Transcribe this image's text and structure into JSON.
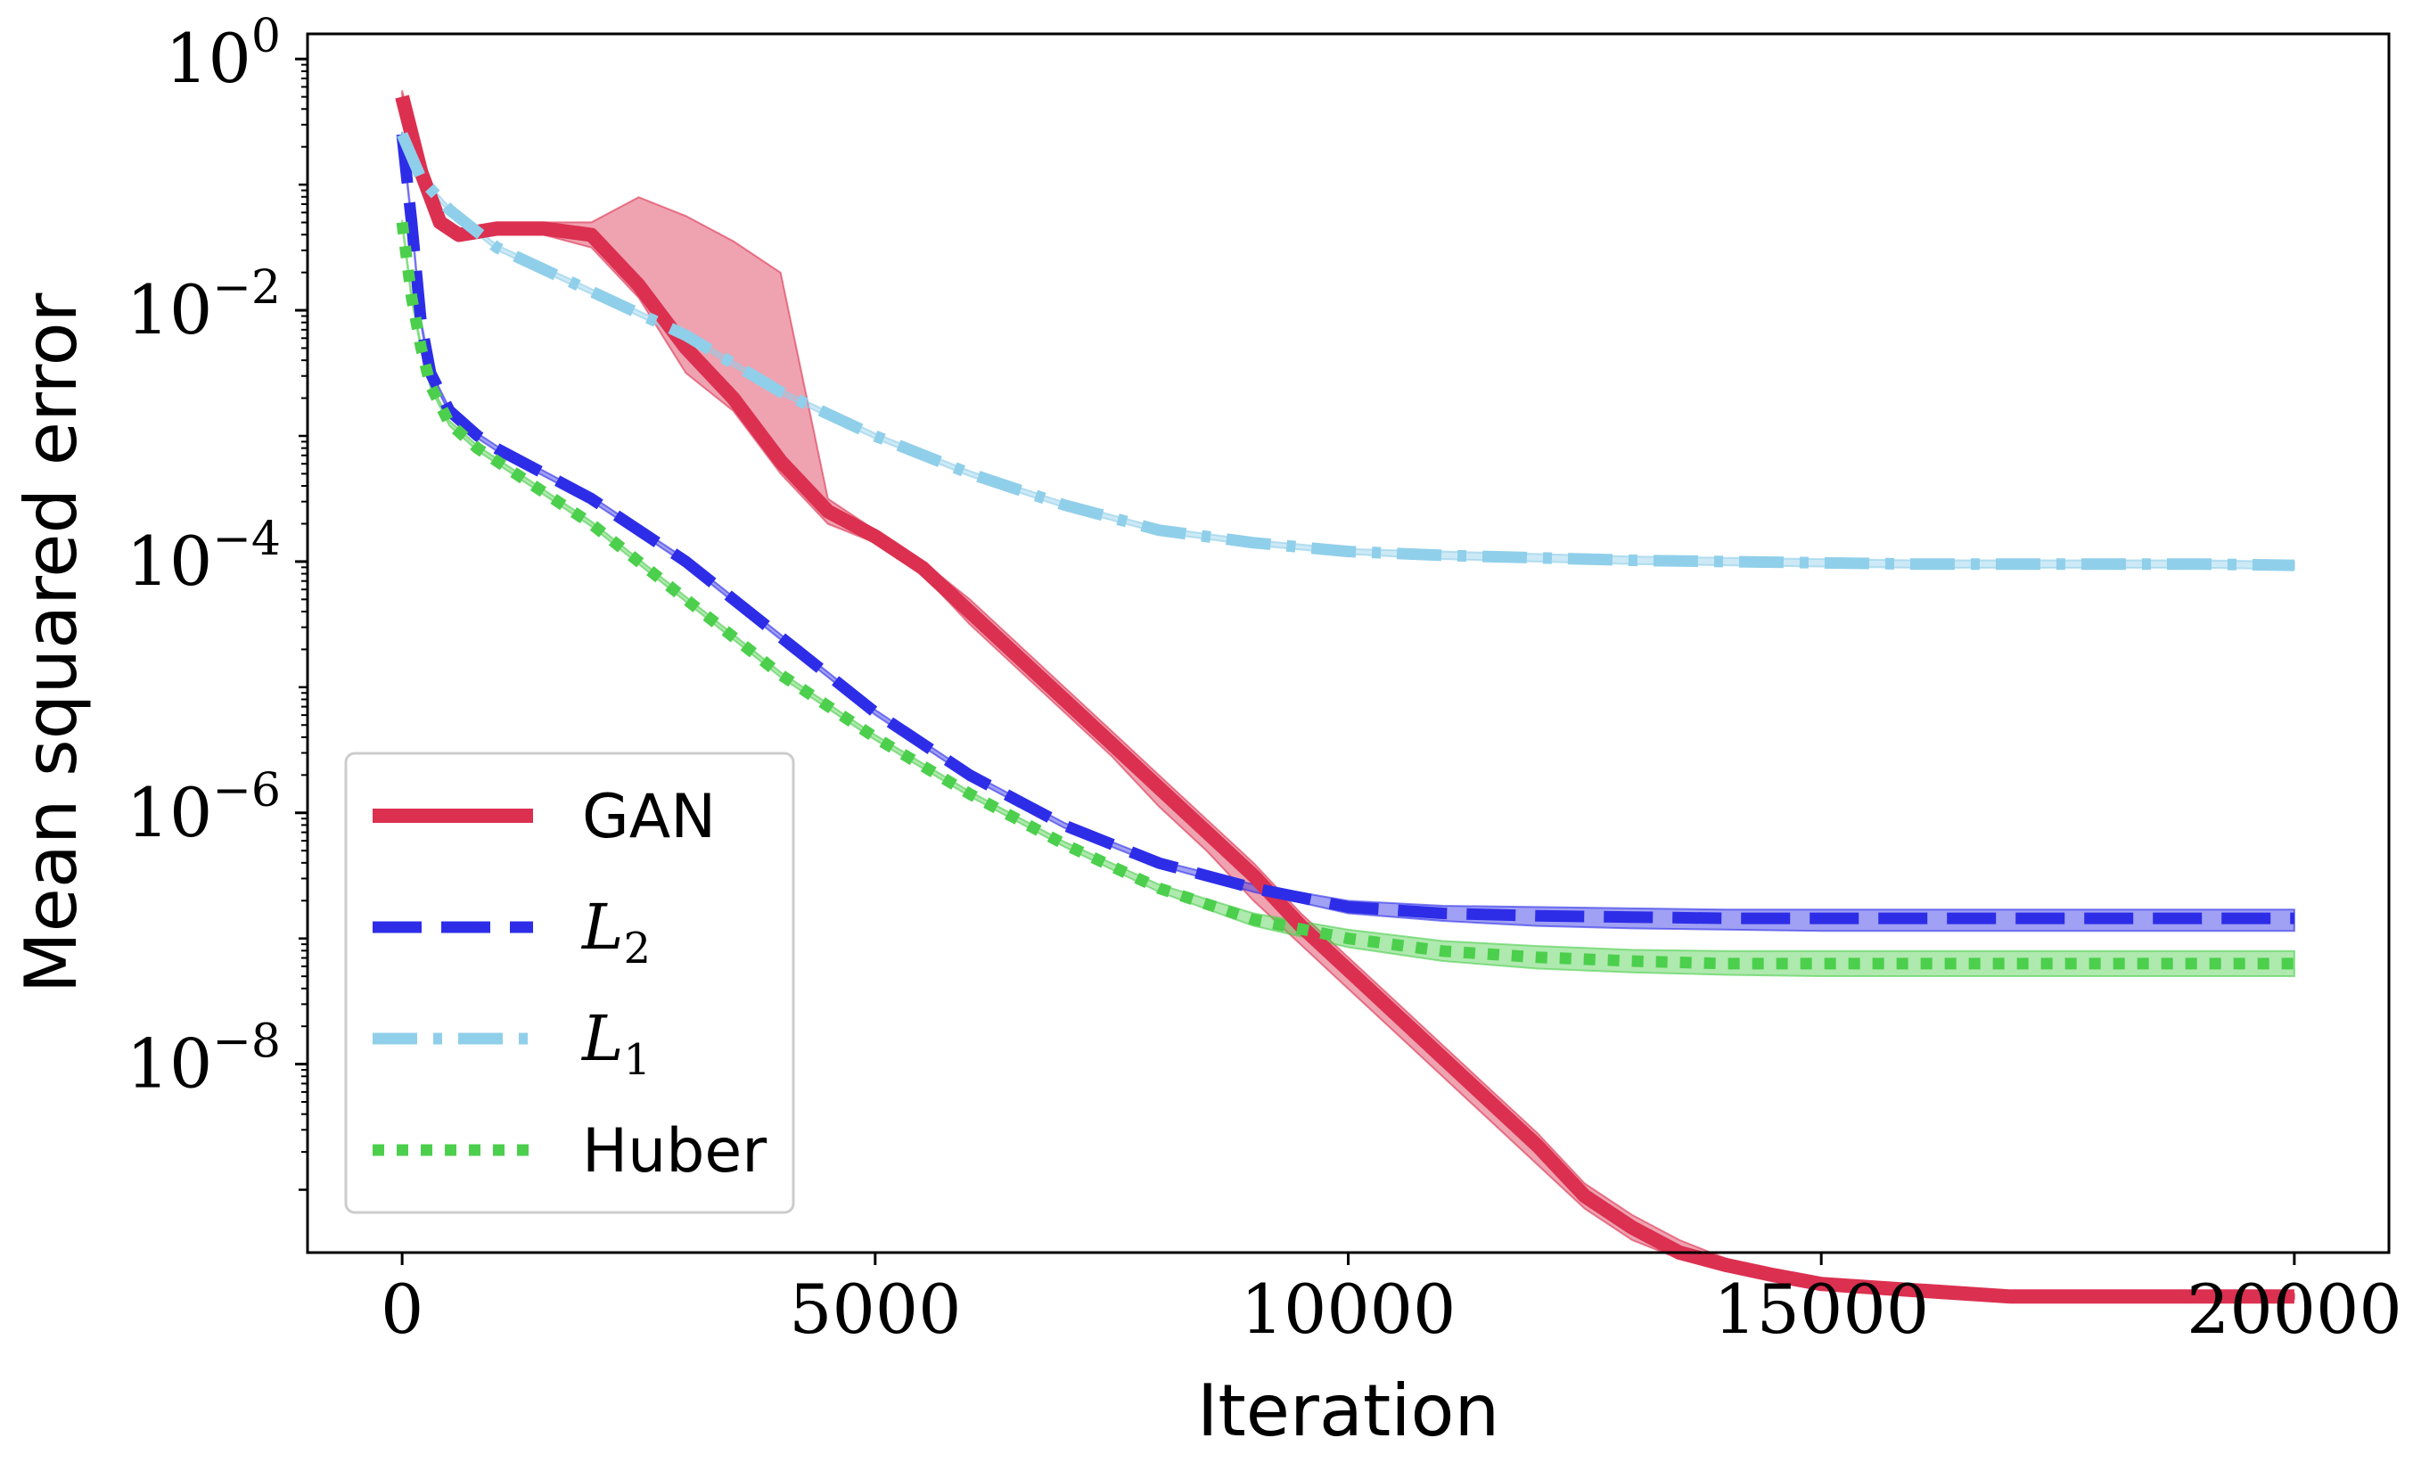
{
  "chart_data": {
    "type": "line",
    "xlabel": "Iteration",
    "ylabel": "Mean squared error",
    "yscale": "log",
    "xlim": [
      -1000,
      21000
    ],
    "ylim_log10": [
      -9.5,
      0.2
    ],
    "x_ticks": [
      0,
      5000,
      10000,
      15000,
      20000
    ],
    "x_tick_labels": [
      "0",
      "5000",
      "10000",
      "15000",
      "20000"
    ],
    "y_ticks_log10": [
      0,
      -2,
      -4,
      -6,
      -8
    ],
    "y_tick_labels": [
      {
        "base": "10",
        "exp": "0"
      },
      {
        "base": "10",
        "exp": "−2"
      },
      {
        "base": "10",
        "exp": "−4"
      },
      {
        "base": "10",
        "exp": "−6"
      },
      {
        "base": "10",
        "exp": "−8"
      }
    ],
    "legend_position": "lower-left",
    "series": [
      {
        "name": "GAN",
        "label_math": "",
        "label_sub": "",
        "color": "#dc3050",
        "style": "solid",
        "x": [
          0,
          100,
          200,
          300,
          400,
          600,
          1000,
          1500,
          2000,
          2500,
          3000,
          3500,
          4000,
          4500,
          5000,
          5500,
          6000,
          6500,
          7000,
          7500,
          8000,
          8500,
          9000,
          9500,
          10000,
          10500,
          11000,
          11500,
          12000,
          12500,
          13000,
          13500,
          14000,
          14500,
          15000,
          16000,
          17000,
          18000,
          19000,
          20000
        ],
        "log10_values": [
          -0.3,
          -0.6,
          -0.9,
          -1.1,
          -1.3,
          -1.4,
          -1.35,
          -1.35,
          -1.4,
          -1.8,
          -2.3,
          -2.7,
          -3.2,
          -3.6,
          -3.8,
          -4.05,
          -4.4,
          -4.75,
          -5.1,
          -5.45,
          -5.8,
          -6.15,
          -6.5,
          -6.9,
          -7.25,
          -7.6,
          -7.95,
          -8.3,
          -8.65,
          -9.05,
          -9.3,
          -9.5,
          -9.6,
          -9.68,
          -9.75,
          -9.8,
          -9.85,
          -9.85,
          -9.85,
          -9.85
        ],
        "band_lower_log10": [
          -0.35,
          -0.65,
          -0.95,
          -1.15,
          -1.35,
          -1.45,
          -1.4,
          -1.4,
          -1.5,
          -1.9,
          -2.5,
          -2.8,
          -3.3,
          -3.7,
          -3.85,
          -4.1,
          -4.5,
          -4.85,
          -5.2,
          -5.55,
          -5.95,
          -6.3,
          -6.7,
          -7.05,
          -7.4,
          -7.75,
          -8.1,
          -8.45,
          -8.8,
          -9.15,
          -9.4,
          -9.55,
          -9.65,
          -9.72,
          -9.78,
          -9.83,
          -9.87,
          -9.87,
          -9.87,
          -9.87
        ],
        "band_upper_log10": [
          -0.25,
          -0.55,
          -0.85,
          -1.05,
          -1.25,
          -1.35,
          -1.3,
          -1.3,
          -1.3,
          -1.1,
          -1.25,
          -1.45,
          -1.7,
          -3.5,
          -3.75,
          -4.0,
          -4.3,
          -4.65,
          -5.0,
          -5.35,
          -5.7,
          -6.05,
          -6.4,
          -6.8,
          -7.15,
          -7.5,
          -7.85,
          -8.2,
          -8.55,
          -8.95,
          -9.2,
          -9.4,
          -9.55,
          -9.65,
          -9.72,
          -9.78,
          -9.83,
          -9.83,
          -9.83,
          -9.83
        ]
      },
      {
        "name": "",
        "label_math": "L",
        "label_sub": "2",
        "color": "#2d2de8",
        "style": "dashed",
        "x": [
          0,
          100,
          200,
          300,
          500,
          800,
          1000,
          2000,
          3000,
          4000,
          5000,
          6000,
          7000,
          8000,
          9000,
          10000,
          11000,
          12000,
          13000,
          14000,
          15000,
          16000,
          17000,
          18000,
          19000,
          20000
        ],
        "log10_values": [
          -0.6,
          -1.3,
          -2.1,
          -2.5,
          -2.8,
          -3.0,
          -3.1,
          -3.5,
          -4.0,
          -4.6,
          -5.2,
          -5.7,
          -6.1,
          -6.4,
          -6.6,
          -6.75,
          -6.8,
          -6.82,
          -6.83,
          -6.84,
          -6.84,
          -6.84,
          -6.84,
          -6.84,
          -6.84,
          -6.84
        ],
        "band_lower_log10": [
          -0.62,
          -1.32,
          -2.12,
          -2.52,
          -2.82,
          -3.02,
          -3.12,
          -3.52,
          -4.02,
          -4.62,
          -5.22,
          -5.72,
          -6.12,
          -6.42,
          -6.63,
          -6.8,
          -6.86,
          -6.9,
          -6.92,
          -6.93,
          -6.94,
          -6.94,
          -6.94,
          -6.94,
          -6.94,
          -6.94
        ],
        "band_upper_log10": [
          -0.58,
          -1.28,
          -2.08,
          -2.48,
          -2.78,
          -2.98,
          -3.08,
          -3.48,
          -3.98,
          -4.58,
          -5.18,
          -5.68,
          -6.08,
          -6.38,
          -6.57,
          -6.7,
          -6.74,
          -6.75,
          -6.76,
          -6.77,
          -6.77,
          -6.77,
          -6.77,
          -6.77,
          -6.77,
          -6.77
        ]
      },
      {
        "name": "",
        "label_math": "L",
        "label_sub": "1",
        "color": "#90cfea",
        "style": "dashdot",
        "x": [
          0,
          200,
          500,
          1000,
          2000,
          3000,
          4000,
          5000,
          6000,
          7000,
          8000,
          9000,
          10000,
          11000,
          12000,
          13000,
          14000,
          15000,
          16000,
          17000,
          18000,
          19000,
          20000
        ],
        "log10_values": [
          -0.6,
          -0.95,
          -1.2,
          -1.5,
          -1.85,
          -2.2,
          -2.65,
          -3.0,
          -3.3,
          -3.55,
          -3.75,
          -3.85,
          -3.92,
          -3.95,
          -3.97,
          -3.99,
          -4.0,
          -4.01,
          -4.02,
          -4.02,
          -4.02,
          -4.02,
          -4.03
        ],
        "band_lower_log10": [
          -0.62,
          -0.97,
          -1.22,
          -1.52,
          -1.87,
          -2.22,
          -2.67,
          -3.02,
          -3.32,
          -3.57,
          -3.77,
          -3.87,
          -3.94,
          -3.98,
          -4.0,
          -4.02,
          -4.03,
          -4.04,
          -4.05,
          -4.05,
          -4.05,
          -4.05,
          -4.06
        ],
        "band_upper_log10": [
          -0.58,
          -0.93,
          -1.18,
          -1.48,
          -1.83,
          -2.18,
          -2.63,
          -2.98,
          -3.28,
          -3.53,
          -3.73,
          -3.83,
          -3.9,
          -3.92,
          -3.94,
          -3.96,
          -3.97,
          -3.98,
          -3.99,
          -3.99,
          -3.99,
          -3.99,
          -4.0
        ]
      },
      {
        "name": "Huber",
        "label_math": "",
        "label_sub": "",
        "color": "#4ccf4c",
        "style": "dotted",
        "x": [
          0,
          100,
          200,
          300,
          500,
          800,
          1000,
          2000,
          3000,
          4000,
          5000,
          6000,
          7000,
          8000,
          9000,
          10000,
          11000,
          12000,
          13000,
          14000,
          15000,
          16000,
          17000,
          18000,
          19000,
          20000
        ],
        "log10_values": [
          -1.3,
          -1.9,
          -2.3,
          -2.6,
          -2.9,
          -3.1,
          -3.2,
          -3.7,
          -4.3,
          -4.9,
          -5.4,
          -5.85,
          -6.25,
          -6.6,
          -6.85,
          -7.0,
          -7.1,
          -7.15,
          -7.18,
          -7.2,
          -7.2,
          -7.2,
          -7.2,
          -7.2,
          -7.2,
          -7.2
        ],
        "band_lower_log10": [
          -1.32,
          -1.92,
          -2.32,
          -2.62,
          -2.92,
          -3.12,
          -3.22,
          -3.72,
          -4.32,
          -4.92,
          -5.42,
          -5.87,
          -6.27,
          -6.63,
          -6.9,
          -7.07,
          -7.18,
          -7.24,
          -7.27,
          -7.29,
          -7.3,
          -7.3,
          -7.3,
          -7.3,
          -7.3,
          -7.3
        ],
        "band_upper_log10": [
          -1.28,
          -1.88,
          -2.28,
          -2.58,
          -2.88,
          -3.08,
          -3.18,
          -3.68,
          -4.28,
          -4.88,
          -5.38,
          -5.83,
          -6.23,
          -6.57,
          -6.8,
          -6.93,
          -7.02,
          -7.06,
          -7.09,
          -7.1,
          -7.1,
          -7.1,
          -7.1,
          -7.1,
          -7.1,
          -7.1
        ]
      }
    ]
  }
}
